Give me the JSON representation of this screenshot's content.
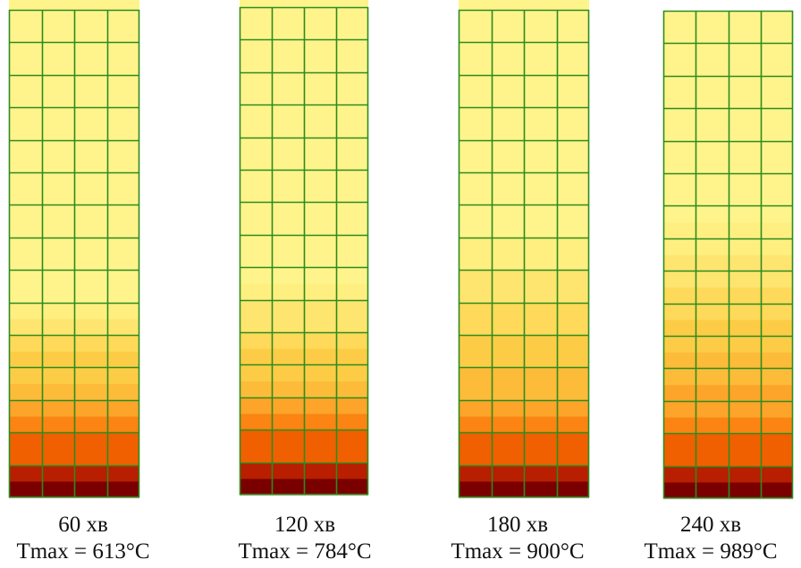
{
  "panels": [
    {
      "time_label": "60 хв",
      "tmax_label": "Tmax = 613°C",
      "bands_from_bottom": [
        "#7a0000",
        "#b81e00",
        "#f06000",
        "#fb8412",
        "#fda42a",
        "#fdbb3a",
        "#fdcc46",
        "#fed95a",
        "#fee570",
        "#ffef80",
        "#fff48c"
      ],
      "band_rows_from_bottom": [
        0.5,
        0.5,
        1,
        0.5,
        0.5,
        0.5,
        1,
        0.5,
        0.5,
        0.5,
        10
      ]
    },
    {
      "time_label": "120 хв",
      "tmax_label": "Tmax = 784°C",
      "bands_from_bottom": [
        "#7a0000",
        "#b81e00",
        "#f06000",
        "#fb8412",
        "#fda42a",
        "#fdbb3a",
        "#fdcc46",
        "#fed95a",
        "#fee570",
        "#ffef80",
        "#fff48c"
      ],
      "band_rows_from_bottom": [
        0.5,
        0.5,
        1,
        0.5,
        0.5,
        0.5,
        1,
        0.5,
        1,
        0.5,
        9.5
      ]
    },
    {
      "time_label": "180 хв",
      "tmax_label": "Tmax = 900°C",
      "bands_from_bottom": [
        "#7a0000",
        "#b81e00",
        "#f06000",
        "#fb8412",
        "#fda42a",
        "#fdbb3a",
        "#fdcc46",
        "#fed95a",
        "#fee570",
        "#ffef80",
        "#fff48c"
      ],
      "band_rows_from_bottom": [
        0.5,
        0.5,
        1,
        0.5,
        0.5,
        1,
        1,
        1,
        1,
        1,
        7.5
      ]
    },
    {
      "time_label": "240 хв",
      "tmax_label": "Tmax = 989°C",
      "bands_from_bottom": [
        "#7a0000",
        "#b81e00",
        "#f06000",
        "#fb8412",
        "#fda42a",
        "#fdbb3a",
        "#fdcc46",
        "#fed95a",
        "#fee570",
        "#ffef80",
        "#fff48c"
      ],
      "band_rows_from_bottom": [
        0.5,
        0.5,
        1,
        0.5,
        1,
        1,
        1,
        1,
        1,
        1,
        6.5
      ]
    }
  ],
  "mesh": {
    "columns": 4,
    "rows": 15,
    "line_color": "#2e8b1e"
  }
}
